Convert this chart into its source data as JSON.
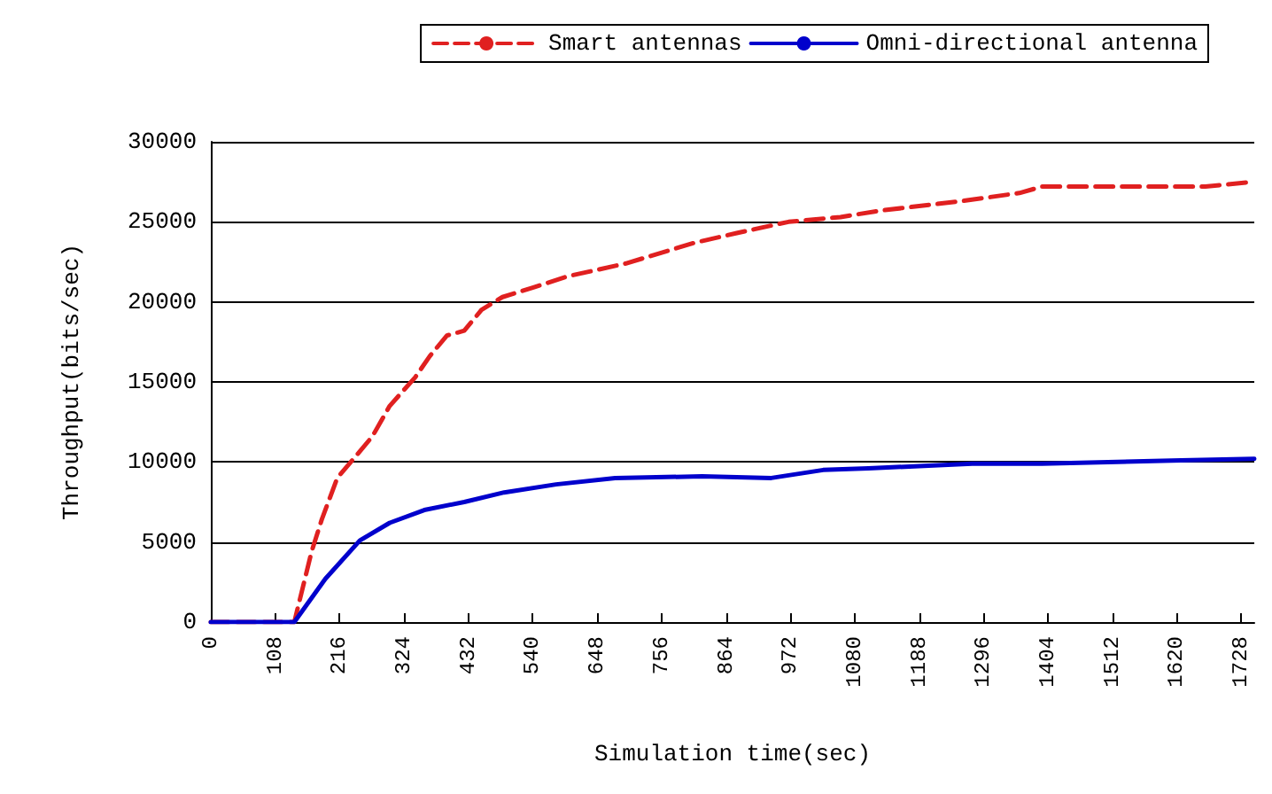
{
  "chart_data": {
    "type": "line",
    "xlabel": "Simulation time(sec)",
    "ylabel": "Throughput(bits/sec)",
    "xlim": [
      0,
      1750
    ],
    "xticks": [
      0,
      108,
      216,
      324,
      432,
      540,
      648,
      756,
      864,
      972,
      1080,
      1188,
      1296,
      1404,
      1512,
      1620,
      1728
    ],
    "ylim": [
      0,
      30000
    ],
    "yticks": [
      0,
      5000,
      10000,
      15000,
      20000,
      25000,
      30000
    ],
    "grid": "y",
    "legend": "top right",
    "marker": "none",
    "series": [
      {
        "name": "Smart antennas",
        "color": "#e02020",
        "line_style": "dashed",
        "x": [
          0,
          140,
          169,
          186,
          212,
          244,
          271,
          300,
          343,
          367,
          396,
          425,
          454,
          489,
          541,
          599,
          696,
          812,
          882,
          969,
          1056,
          1123,
          1260,
          1356,
          1394,
          1668,
          1750
        ],
        "values": [
          0,
          0,
          4400,
          6400,
          9000,
          10400,
          11600,
          13500,
          15300,
          16600,
          17900,
          18200,
          19500,
          20300,
          20900,
          21600,
          22400,
          23700,
          24300,
          25000,
          25300,
          25700,
          26300,
          26800,
          27200,
          27200,
          27500
        ]
      },
      {
        "name": "Omni-directional antenna",
        "color": "#0000cc",
        "line_style": "solid",
        "x": [
          0,
          140,
          192,
          250,
          300,
          358,
          425,
          492,
          579,
          678,
          824,
          940,
          1027,
          1103,
          1277,
          1394,
          1627,
          1750
        ],
        "values": [
          0,
          0,
          2700,
          5100,
          6200,
          7000,
          7500,
          8100,
          8600,
          9000,
          9100,
          9000,
          9500,
          9600,
          9900,
          9900,
          10100,
          10200
        ]
      }
    ]
  }
}
